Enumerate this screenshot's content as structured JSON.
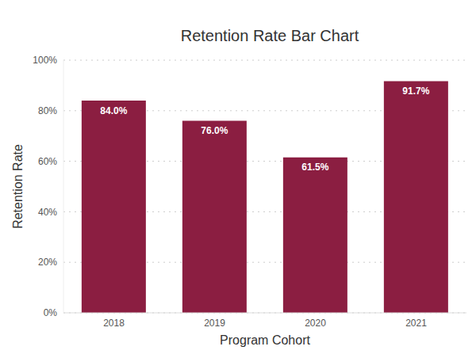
{
  "chart_data": {
    "type": "bar",
    "title": "Retention Rate Bar Chart",
    "x_label": "Program Cohort",
    "y_label": "Retention Rate",
    "categories": [
      "2018",
      "2019",
      "2020",
      "2021"
    ],
    "values": [
      84.0,
      76.0,
      61.5,
      91.7
    ],
    "value_labels": [
      "84.0%",
      "76.0%",
      "61.5%",
      "91.7%"
    ],
    "data_labels": true,
    "color": "#8b1e41",
    "ylim": [
      0,
      100
    ],
    "yticks": [
      {
        "value": 0,
        "label": "0%"
      },
      {
        "value": 20,
        "label": "20%"
      },
      {
        "value": 40,
        "label": "40%"
      },
      {
        "value": 60,
        "label": "60%"
      },
      {
        "value": 80,
        "label": "80%"
      },
      {
        "value": 100,
        "label": "100%"
      }
    ],
    "grid": true
  }
}
